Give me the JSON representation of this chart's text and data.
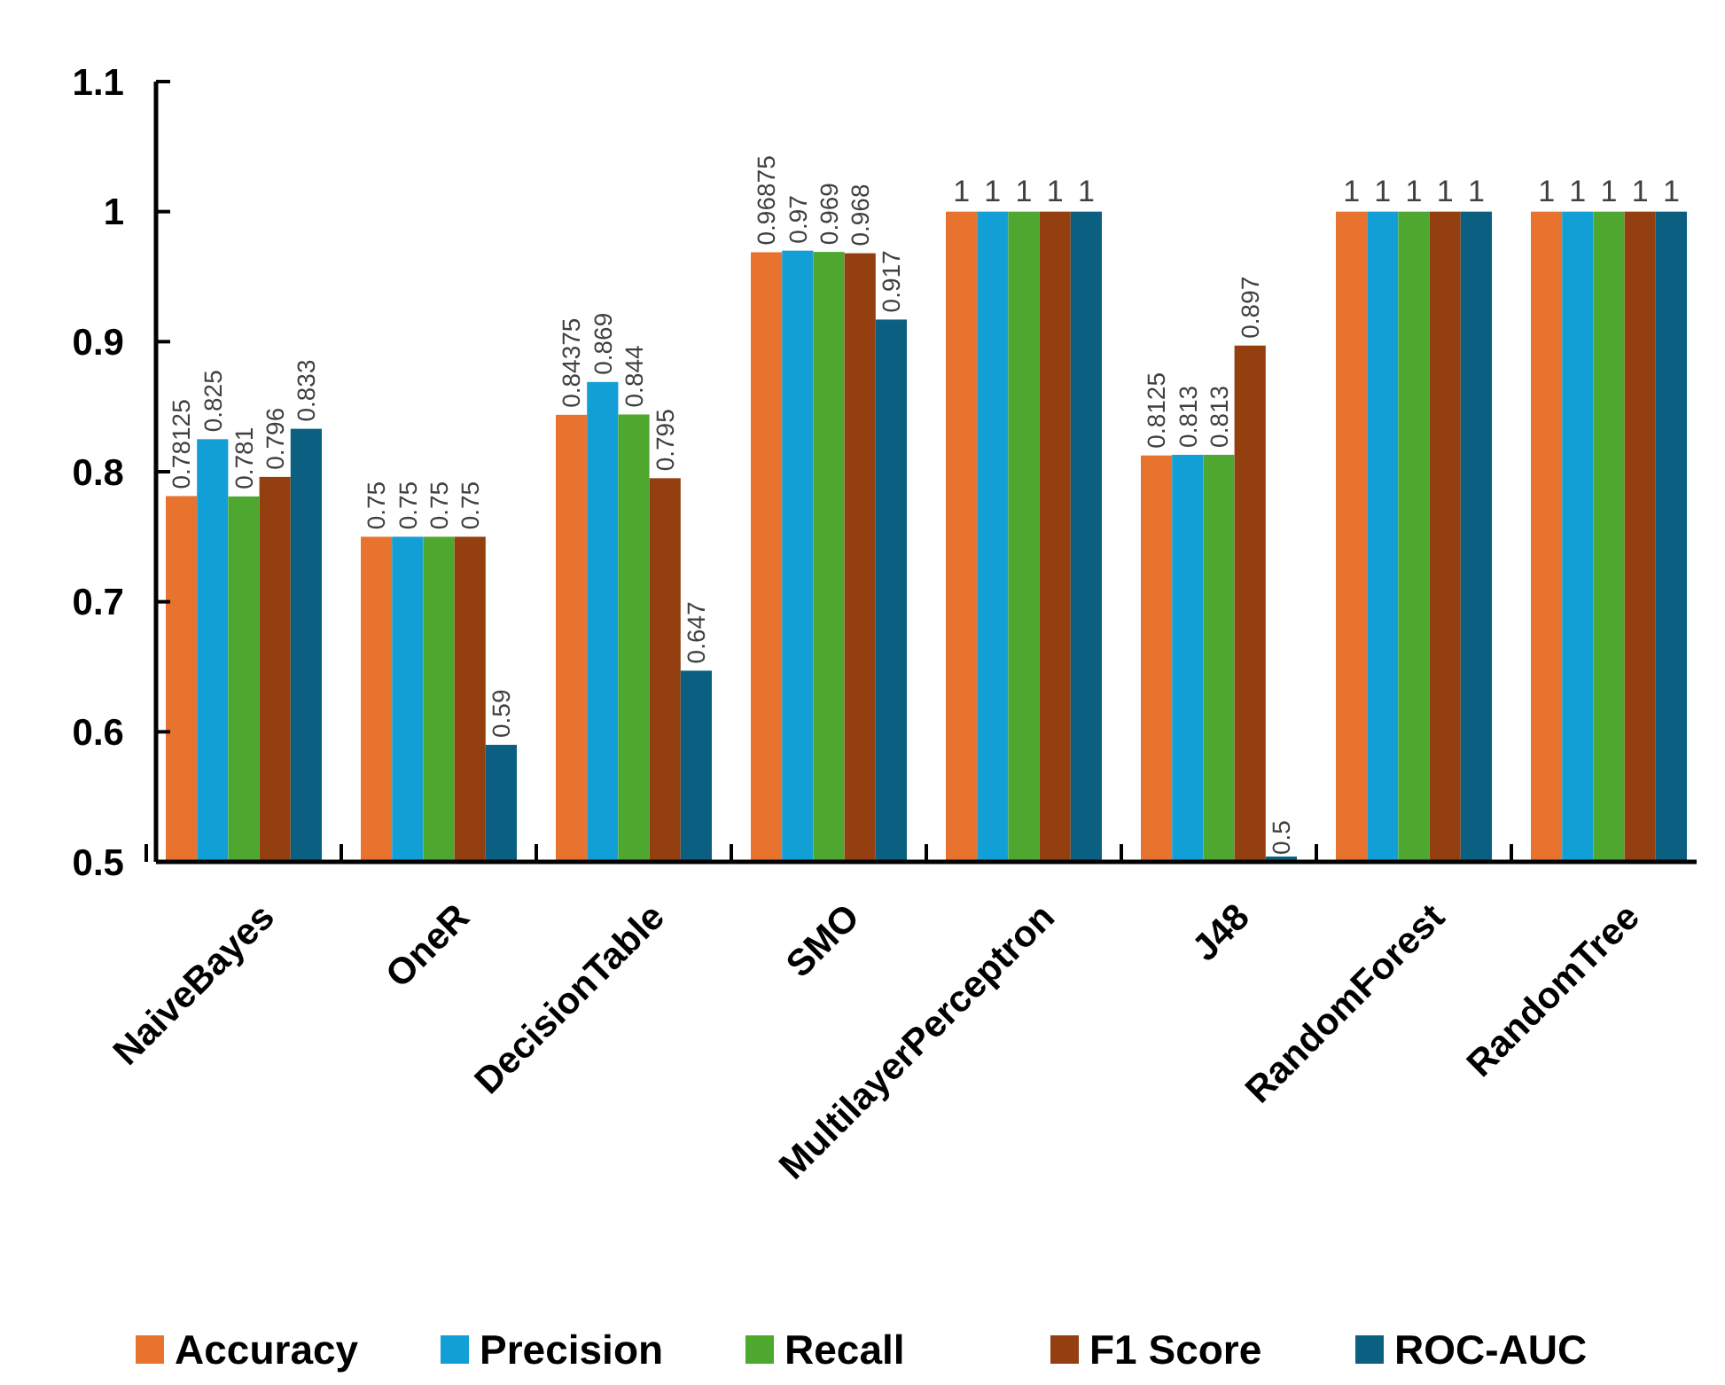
{
  "chart_data": {
    "type": "bar",
    "categories": [
      "NaiveBayes",
      "OneR",
      "DecisionTable",
      "SMO",
      "MultilayerPerceptron",
      "J48",
      "RandomForest",
      "RandomTree"
    ],
    "series": [
      {
        "name": "Accuracy",
        "color": "#e8732f",
        "values": [
          0.78125,
          0.75,
          0.84375,
          0.96875,
          1,
          0.8125,
          1,
          1
        ]
      },
      {
        "name": "Precision",
        "color": "#129fd6",
        "values": [
          0.825,
          0.75,
          0.869,
          0.97,
          1,
          0.813,
          1,
          1
        ]
      },
      {
        "name": "Recall",
        "color": "#4ea72e",
        "values": [
          0.781,
          0.75,
          0.844,
          0.969,
          1,
          0.813,
          1,
          1
        ]
      },
      {
        "name": "F1 Score",
        "color": "#943f10",
        "values": [
          0.796,
          0.75,
          0.795,
          0.968,
          1,
          0.897,
          1,
          1
        ]
      },
      {
        "name": "ROC-AUC",
        "color": "#0b5f80",
        "values": [
          0.833,
          0.59,
          0.647,
          0.917,
          1,
          0.5,
          1,
          1
        ]
      }
    ],
    "ylim": [
      0.5,
      1.1
    ],
    "yticks": [
      0.5,
      0.6,
      0.7,
      0.8,
      0.9,
      1,
      1.1
    ],
    "data_labels": true,
    "grid": false,
    "legend": "bottom"
  }
}
